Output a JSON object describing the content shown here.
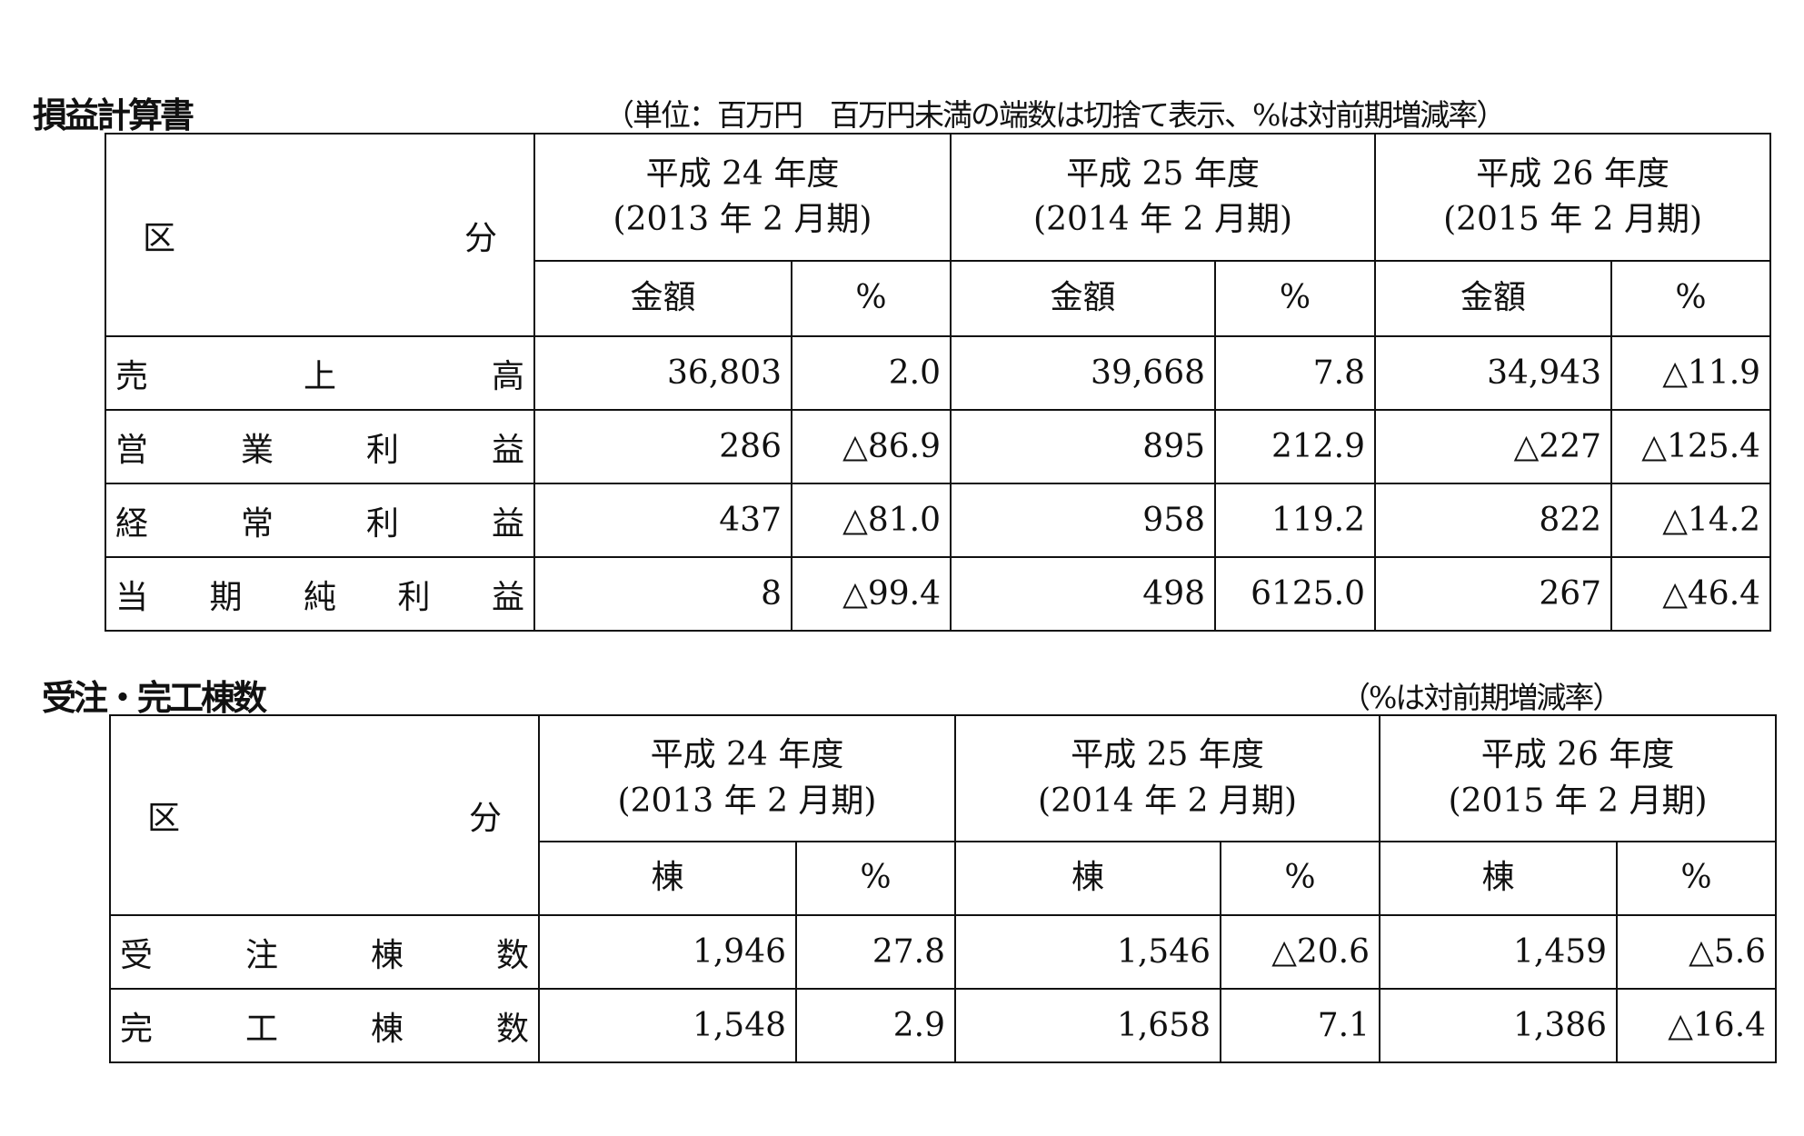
{
  "pl": {
    "title": "損益計算書",
    "note": "（単位：百万円　百万円未満の端数は切捨て表示、%は対前期増減率）",
    "category_header": [
      "区",
      "分"
    ],
    "periods": [
      {
        "year": "平成 24 年度",
        "term": "(2013 年 2 月期)"
      },
      {
        "year": "平成 25 年度",
        "term": "(2014 年 2 月期)"
      },
      {
        "year": "平成 26 年度",
        "term": "(2015 年 2 月期)"
      }
    ],
    "sub_headers": [
      "金額",
      "%"
    ],
    "rows": [
      {
        "label": [
          "売",
          "上",
          "高"
        ],
        "values": [
          "36,803",
          "2.0",
          "39,668",
          "7.8",
          "34,943",
          "△11.9"
        ]
      },
      {
        "label": [
          "営",
          "業",
          "利",
          "益"
        ],
        "values": [
          "286",
          "△86.9",
          "895",
          "212.9",
          "△227",
          "△125.4"
        ]
      },
      {
        "label": [
          "経",
          "常",
          "利",
          "益"
        ],
        "values": [
          "437",
          "△81.0",
          "958",
          "119.2",
          "822",
          "△14.2"
        ]
      },
      {
        "label": [
          "当",
          "期",
          "純",
          "利",
          "益"
        ],
        "values": [
          "8",
          "△99.4",
          "498",
          "6125.0",
          "267",
          "△46.4"
        ]
      }
    ]
  },
  "orders": {
    "title": "受注・完工棟数",
    "note": "（%は対前期増減率）",
    "category_header": [
      "区",
      "分"
    ],
    "periods": [
      {
        "year": "平成 24 年度",
        "term": "(2013 年 2 月期)"
      },
      {
        "year": "平成 25 年度",
        "term": "(2014 年 2 月期)"
      },
      {
        "year": "平成 26 年度",
        "term": "(2015 年 2 月期)"
      }
    ],
    "sub_headers": [
      "棟",
      "%"
    ],
    "rows": [
      {
        "label": [
          "受",
          "注",
          "棟",
          "数"
        ],
        "values": [
          "1,946",
          "27.8",
          "1,546",
          "△20.6",
          "1,459",
          "△5.6"
        ]
      },
      {
        "label": [
          "完",
          "工",
          "棟",
          "数"
        ],
        "values": [
          "1,548",
          "2.9",
          "1,658",
          "7.1",
          "1,386",
          "△16.4"
        ]
      }
    ]
  }
}
